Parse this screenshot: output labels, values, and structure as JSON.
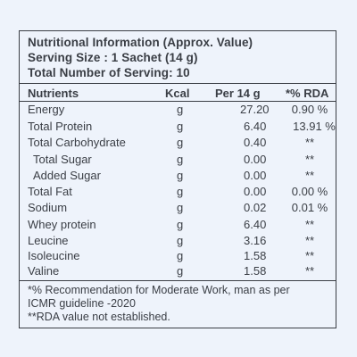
{
  "header": {
    "title": "Nutritional Information (Approx. Value)",
    "serving_size": "Serving Size : 1 Sachet (14 g)",
    "servings": "Total Number of Serving: 10"
  },
  "table": {
    "columns": [
      "Nutrients",
      "Kcal",
      "Per 14 g",
      "*% RDA"
    ],
    "rows": [
      {
        "name": "Energy",
        "unit": "g",
        "per": "27.20",
        "rda": "0.90 %"
      },
      {
        "name": "Total Protein",
        "unit": "g",
        "per": "6.40",
        "rda": "13.91 %"
      },
      {
        "name": "Total Carbohydrate",
        "unit": "g",
        "per": "0.40",
        "rda": "**"
      },
      {
        "name": "Total Sugar",
        "unit": "g",
        "per": "0.00",
        "rda": "**"
      },
      {
        "name": "Added Sugar",
        "unit": "g",
        "per": "0.00",
        "rda": "**"
      },
      {
        "name": "Total Fat",
        "unit": "g",
        "per": "0.00",
        "rda": "0.00 %"
      },
      {
        "name": "Sodium",
        "unit": "g",
        "per": "0.02",
        "rda": "0.01 %"
      },
      {
        "name": "Whey protein",
        "unit": "g",
        "per": "6.40",
        "rda": "**"
      },
      {
        "name": "Leucine",
        "unit": "g",
        "per": "3.16",
        "rda": "**"
      },
      {
        "name": "Isoleucine",
        "unit": "g",
        "per": "1.58",
        "rda": "**"
      },
      {
        "name": "Valine",
        "unit": "g",
        "per": "1.58",
        "rda": "**"
      }
    ]
  },
  "footer": {
    "line1": "*% Recommendation for Moderate Work, man as per",
    "line2": "ICMR guideline -2020",
    "line3": "**RDA value not  established."
  }
}
